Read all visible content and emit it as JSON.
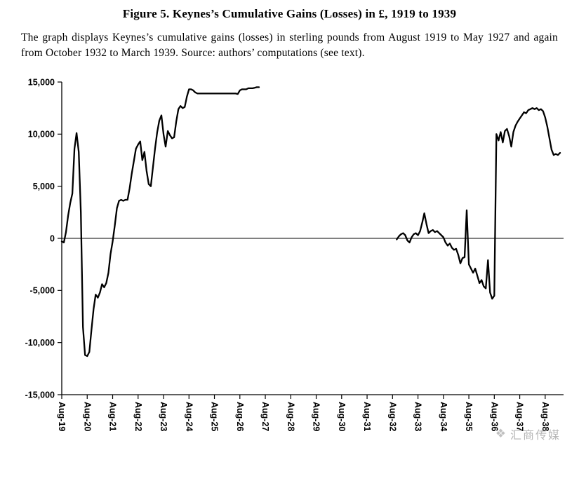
{
  "figure": {
    "title": "Figure 5. Keynes’s Cumulative Gains (Losses) in £, 1919 to 1939",
    "caption": "The graph displays Keynes’s cumulative gains (losses) in sterling pounds from August 1919 to May 1927 and again from October 1932 to March 1939. Source: authors’ computations (see text)."
  },
  "watermark": {
    "text": "汇商传媒",
    "icon": "huishang-media-logo"
  },
  "chart_data": {
    "type": "line",
    "title": "Keynes's cumulative gains (losses) in sterling pounds, 1919-1939",
    "xlabel": "",
    "ylabel": "",
    "x_start": "1919-08",
    "x_end": "1939-03",
    "x_tick_interval_months": 12,
    "x_tick_labels": [
      "Aug-19",
      "Aug-20",
      "Aug-21",
      "Aug-22",
      "Aug-23",
      "Aug-24",
      "Aug-25",
      "Aug-26",
      "Aug-27",
      "Aug-28",
      "Aug-29",
      "Aug-30",
      "Aug-31",
      "Aug-32",
      "Aug-33",
      "Aug-34",
      "Aug-35",
      "Aug-36",
      "Aug-37",
      "Aug-38"
    ],
    "ylim": [
      -15000,
      15000
    ],
    "y_ticks": [
      15000,
      10000,
      5000,
      0,
      -5000,
      -10000,
      -15000
    ],
    "y_tick_labels": [
      "15,000",
      "10,000",
      "5,000",
      "0",
      "-5,000",
      "-10,000",
      "-15,000"
    ],
    "grid": false,
    "legend": false,
    "zero_line": true,
    "line_color": "#000000",
    "axis_color": "#000000",
    "series": [
      {
        "name": "aug-1919-to-may-1927",
        "start_month": "1919-08",
        "end_month": "1927-05",
        "values": [
          -300,
          -400,
          600,
          2200,
          3400,
          4300,
          8600,
          10100,
          8300,
          2500,
          -8500,
          -11200,
          -11300,
          -10900,
          -8800,
          -6800,
          -5400,
          -5700,
          -5200,
          -4400,
          -4700,
          -4300,
          -3300,
          -1500,
          -300,
          1200,
          2900,
          3600,
          3700,
          3600,
          3700,
          3700,
          4800,
          6200,
          7400,
          8600,
          9000,
          9300,
          7500,
          8300,
          6500,
          5200,
          5000,
          6800,
          8600,
          10200,
          11300,
          11800,
          10000,
          8800,
          10300,
          9900,
          9600,
          9700,
          11200,
          12400,
          12700,
          12500,
          12600,
          13600,
          14300,
          14300,
          14200,
          14000,
          13900,
          13900,
          13900,
          13900,
          13900,
          13900,
          13900,
          13900,
          13900,
          13900,
          13900,
          13900,
          13900,
          13900,
          13900,
          13900,
          13900,
          13900,
          13900,
          13850,
          14200,
          14300,
          14300,
          14300,
          14400,
          14400,
          14400,
          14450,
          14500,
          14500
        ]
      },
      {
        "name": "oct-1932-to-mar-1939",
        "start_month": "1932-10",
        "end_month": "1939-03",
        "values": [
          -100,
          200,
          400,
          500,
          300,
          -200,
          -400,
          100,
          400,
          500,
          300,
          700,
          1500,
          2400,
          1400,
          500,
          700,
          800,
          600,
          700,
          500,
          300,
          100,
          -400,
          -700,
          -500,
          -900,
          -1100,
          -1000,
          -1600,
          -2400,
          -1900,
          -1800,
          2700,
          -2500,
          -2900,
          -3300,
          -2900,
          -3600,
          -4300,
          -4000,
          -4600,
          -4800,
          -2100,
          -5200,
          -5800,
          -5500,
          10000,
          9400,
          10200,
          9200,
          10300,
          10500,
          9800,
          8800,
          10200,
          10800,
          11200,
          11500,
          11800,
          12100,
          12000,
          12300,
          12400,
          12500,
          12400,
          12500,
          12300,
          12400,
          12200,
          11600,
          10700,
          9600,
          8500,
          8000,
          8100,
          8000,
          8200
        ]
      }
    ]
  }
}
